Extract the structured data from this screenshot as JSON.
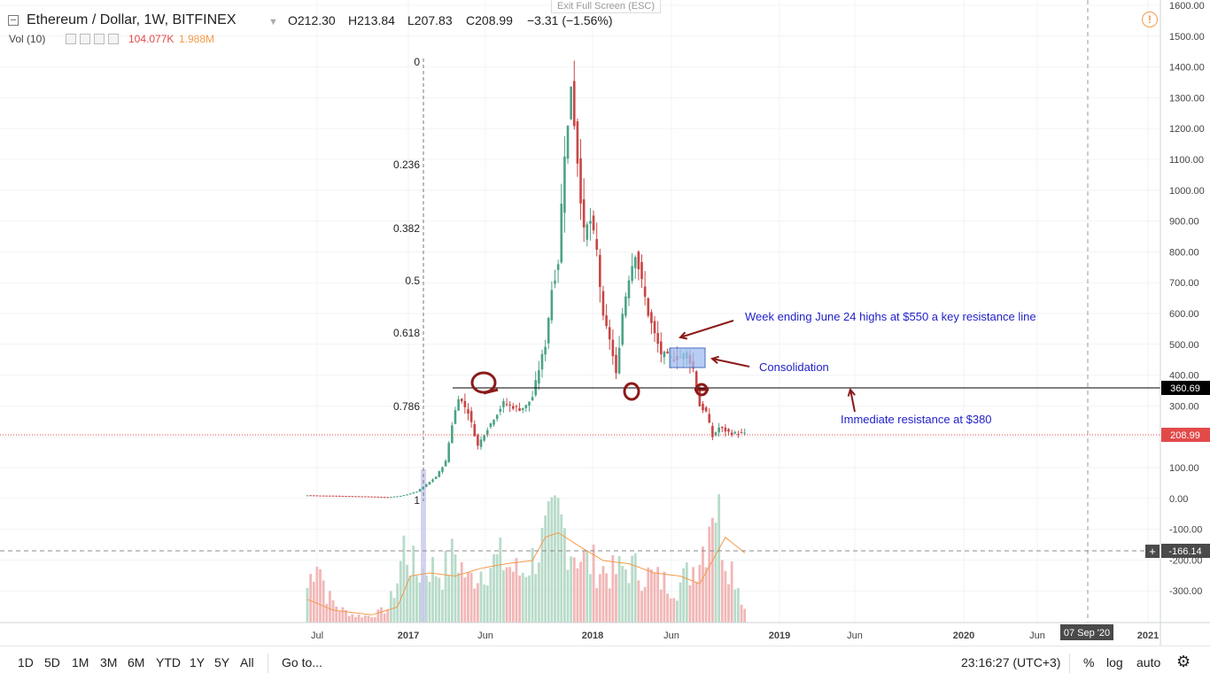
{
  "header": {
    "exit_fullscreen": "Exit Full Screen (ESC)",
    "symbol": "Ethereum / Dollar, 1W, BITFINEX",
    "o_label": "O",
    "o_value": "212.30",
    "h_label": "H",
    "h_value": "213.84",
    "l_label": "L",
    "l_value": "207.83",
    "c_label": "C",
    "c_value": "208.99",
    "change": "−3.31 (−1.56%)",
    "vol_label": "Vol (10)",
    "vol_value": "104.077K",
    "vol_ma_value": "1.988M",
    "alert_glyph": "!"
  },
  "bottom_bar": {
    "ranges": [
      "1D",
      "5D",
      "1M",
      "3M",
      "6M",
      "YTD",
      "1Y",
      "5Y",
      "All"
    ],
    "goto": "Go to...",
    "time": "23:16:27 (UTC+3)",
    "percent": "%",
    "log": "log",
    "auto": "auto"
  },
  "colors": {
    "up": "#4ca287",
    "down": "#c94545",
    "vol_up": "#b8dbc9",
    "vol_down": "#f2b7b7",
    "annotation": "#1f1fc8",
    "marker": "#8b1a1a",
    "last_price": "#e24a4a",
    "ma_line": "#f39b4a",
    "fib": "#777777"
  },
  "chart_data": {
    "type": "candlestick",
    "title": "Ethereum / Dollar, 1W, BITFINEX",
    "y_ticks": [
      "1600.00",
      "1500.00",
      "1400.00",
      "1300.00",
      "1200.00",
      "1100.00",
      "1000.00",
      "900.00",
      "800.00",
      "700.00",
      "600.00",
      "500.00",
      "400.00",
      "300.00",
      "200.00",
      "100.00",
      "0.00",
      "-100.00",
      "-200.00",
      "-300.00"
    ],
    "ylim": [
      -400,
      1600
    ],
    "x_ticks": [
      "Jul",
      "2017",
      "Jun",
      "2018",
      "Jun",
      "2019",
      "Jun",
      "2020",
      "Jun",
      "2021"
    ],
    "x_marker": "07 Sep '20",
    "last_price": "208.99",
    "level_360": "360.69",
    "crosshair_price": "-166.14",
    "fib_labels": [
      "0",
      "0.236",
      "0.382",
      "0.5",
      "0.618",
      "0.786",
      "1"
    ],
    "fib_values": [
      0,
      0.236,
      0.382,
      0.5,
      0.618,
      0.786,
      1
    ],
    "annotations": {
      "resistance_550": "Week ending June 24 highs at $550 a key resistance line",
      "consolidation": "Consolidation",
      "immediate_380": "Immediate resistance at $380"
    },
    "price_anchors": [
      [
        0,
        10
      ],
      [
        5,
        9
      ],
      [
        10,
        8
      ],
      [
        15,
        7
      ],
      [
        20,
        6
      ],
      [
        25,
        4
      ],
      [
        29,
        8
      ],
      [
        31,
        13
      ],
      [
        34,
        22
      ],
      [
        37,
        45
      ],
      [
        40,
        70
      ],
      [
        43,
        120
      ],
      [
        45,
        240
      ],
      [
        47,
        330
      ],
      [
        50,
        280
      ],
      [
        53,
        170
      ],
      [
        55,
        210
      ],
      [
        58,
        260
      ],
      [
        61,
        310
      ],
      [
        63,
        300
      ],
      [
        66,
        290
      ],
      [
        68,
        300
      ],
      [
        70,
        330
      ],
      [
        72,
        420
      ],
      [
        74,
        500
      ],
      [
        76,
        680
      ],
      [
        78,
        770
      ],
      [
        80,
        1130
      ],
      [
        81,
        1200
      ],
      [
        82,
        1350
      ],
      [
        84,
        1100
      ],
      [
        86,
        860
      ],
      [
        88,
        900
      ],
      [
        90,
        800
      ],
      [
        92,
        580
      ],
      [
        94,
        520
      ],
      [
        96,
        400
      ],
      [
        98,
        600
      ],
      [
        100,
        720
      ],
      [
        102,
        800
      ],
      [
        104,
        700
      ],
      [
        106,
        600
      ],
      [
        108,
        530
      ],
      [
        110,
        470
      ],
      [
        112,
        460
      ],
      [
        114,
        455
      ],
      [
        116,
        460
      ],
      [
        118,
        470
      ],
      [
        120,
        420
      ],
      [
        122,
        300
      ],
      [
        124,
        280
      ],
      [
        126,
        200
      ],
      [
        128,
        230
      ],
      [
        130,
        220
      ],
      [
        132,
        210
      ],
      [
        134,
        212
      ],
      [
        136,
        209
      ]
    ],
    "volume_anchors": [
      [
        0,
        0.25
      ],
      [
        3,
        0.5
      ],
      [
        6,
        0.2
      ],
      [
        10,
        0.1
      ],
      [
        15,
        0.05
      ],
      [
        20,
        0.05
      ],
      [
        25,
        0.1
      ],
      [
        28,
        0.3
      ],
      [
        30,
        0.55
      ],
      [
        34,
        0.35
      ],
      [
        38,
        0.4
      ],
      [
        42,
        0.35
      ],
      [
        46,
        0.5
      ],
      [
        50,
        0.3
      ],
      [
        55,
        0.4
      ],
      [
        60,
        0.45
      ],
      [
        66,
        0.35
      ],
      [
        70,
        0.45
      ],
      [
        74,
        0.6
      ],
      [
        78,
        0.75
      ],
      [
        82,
        0.55
      ],
      [
        86,
        0.45
      ],
      [
        90,
        0.4
      ],
      [
        95,
        0.35
      ],
      [
        100,
        0.4
      ],
      [
        105,
        0.35
      ],
      [
        110,
        0.3
      ],
      [
        115,
        0.25
      ],
      [
        120,
        0.4
      ],
      [
        124,
        0.6
      ],
      [
        126,
        0.95
      ],
      [
        128,
        0.75
      ],
      [
        130,
        0.5
      ],
      [
        133,
        0.35
      ],
      [
        136,
        0.1
      ]
    ],
    "volume_ma_anchors": [
      [
        0,
        0.15
      ],
      [
        8,
        0.08
      ],
      [
        20,
        0.05
      ],
      [
        28,
        0.1
      ],
      [
        32,
        0.3
      ],
      [
        38,
        0.32
      ],
      [
        46,
        0.3
      ],
      [
        54,
        0.35
      ],
      [
        62,
        0.38
      ],
      [
        70,
        0.4
      ],
      [
        74,
        0.55
      ],
      [
        78,
        0.58
      ],
      [
        84,
        0.5
      ],
      [
        92,
        0.4
      ],
      [
        100,
        0.38
      ],
      [
        108,
        0.32
      ],
      [
        116,
        0.3
      ],
      [
        122,
        0.25
      ],
      [
        126,
        0.4
      ],
      [
        130,
        0.55
      ],
      [
        136,
        0.45
      ]
    ]
  }
}
